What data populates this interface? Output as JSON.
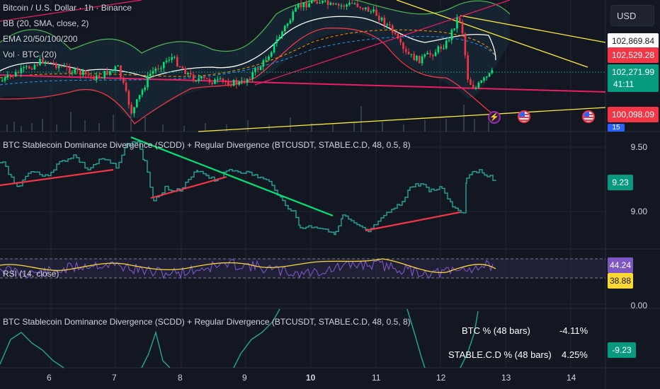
{
  "symbol_title": "Bitcoin / U.S. Dollar · 1h · Binance",
  "legend": [
    "BB (20, SMA, close, 2)",
    "EMA 20/50/100/200",
    "Vol · BTC (20)"
  ],
  "currency_button": "USD",
  "price_tags": [
    {
      "text": "102,869.84",
      "bg": "#ffffff",
      "fg": "#131722"
    },
    {
      "text": "102,529.28",
      "bg": "#f23645",
      "fg": "#ffffff"
    },
    {
      "text": "102,271.99",
      "bg": "#089981",
      "fg": "#ffffff"
    },
    {
      "text": "41:11",
      "bg": "#089981",
      "fg": "#ffffff"
    },
    {
      "text": "100,098.09",
      "bg": "#f23645",
      "fg": "#ffffff"
    },
    {
      "text": "15",
      "bg": "#2962ff",
      "fg": "#ffffff"
    }
  ],
  "scdd_pane": {
    "title": "BTC Stablecoin Dominance Divergence (SCDD) + Regular Divergence (BTCUSDT, STABLE.C.D, 48, 0.5, 8)",
    "axis": [
      "9.50",
      "9.00"
    ],
    "value_tag": "9.23"
  },
  "rsi_pane": {
    "title": "RSI (14, close)",
    "tag_rsi": "44.24",
    "tag_ma": "38.88"
  },
  "bottom_pane": {
    "title": "BTC Stablecoin Dominance Divergence (SCDD) + Regular Divergence (BTCUSDT, STABLE.C.D, 48, 0.5, 8)",
    "axis": [
      "0.00"
    ],
    "value_tag": "-9.23",
    "table": [
      {
        "label": "BTC % (48 bars)",
        "value": "-4.11%"
      },
      {
        "label": "STABLE.C.D % (48 bars)",
        "value": "4.25%"
      }
    ]
  },
  "x_axis_dates": [
    "6",
    "7",
    "8",
    "9",
    "10",
    "11",
    "12",
    "13",
    "14"
  ],
  "colors": {
    "background": "#131722",
    "up": "#00e676",
    "down": "#f23645",
    "bb_upper": "#4caf50",
    "bb_lower": "#f23645",
    "trend_yellow": "#ffeb3b",
    "trend_pink": "#e91e63",
    "scdd_line": "#26a69a",
    "rsi_line": "#7e57c2",
    "rsi_ma": "#fdd835"
  }
}
